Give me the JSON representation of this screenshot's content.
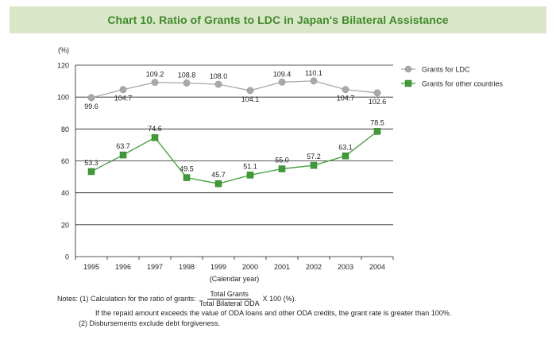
{
  "title": "Chart 10. Ratio of Grants to LDC in Japan's Bilateral Assistance",
  "chart_data": {
    "type": "line",
    "title": "Chart 10. Ratio of Grants to LDC in Japan's Bilateral Assistance",
    "ylabel": "(%)",
    "xlabel": "(Calendar year)",
    "categories": [
      "1995",
      "1996",
      "1997",
      "1998",
      "1999",
      "2000",
      "2001",
      "2002",
      "2003",
      "2004"
    ],
    "ylim": [
      0,
      120
    ],
    "yticks": [
      "0",
      "20",
      "40",
      "60",
      "80",
      "100",
      "120"
    ],
    "grid": true,
    "legend_position": "top-right",
    "series": [
      {
        "name": "Grants for LDC",
        "marker": "circle",
        "color": "#a7a9ac",
        "values": [
          99.6,
          104.7,
          109.2,
          108.8,
          108.0,
          104.1,
          109.4,
          110.1,
          104.7,
          102.6
        ],
        "labels": [
          "99.6",
          "104.7",
          "109.2",
          "108.8",
          "108.0",
          "104.1",
          "109.4",
          "110.1",
          "104.7",
          "102.6"
        ]
      },
      {
        "name": "Grants for other countries",
        "marker": "square",
        "color": "#3f9b35",
        "values": [
          53.3,
          63.7,
          74.6,
          49.5,
          45.7,
          51.1,
          55.0,
          57.2,
          63.1,
          78.5
        ],
        "labels": [
          "53.3",
          "63.7",
          "74.6",
          "49.5",
          "45.7",
          "51.1",
          "55.0",
          "57.2",
          "63.1",
          "78.5"
        ]
      }
    ]
  },
  "notes": {
    "note1_prefix": "Notes: (1) Calculation for the ratio of grants:",
    "fraction_numerator": "Total Grants",
    "fraction_denominator": "Total Bilateral ODA",
    "note1_suffix": "X 100 (%).",
    "note1_continued": "If the repaid amount exceeds the value of ODA loans and other ODA credits, the grant rate is greater than 100%.",
    "note2": "(2) Disbursements exclude debt forgiveness."
  }
}
